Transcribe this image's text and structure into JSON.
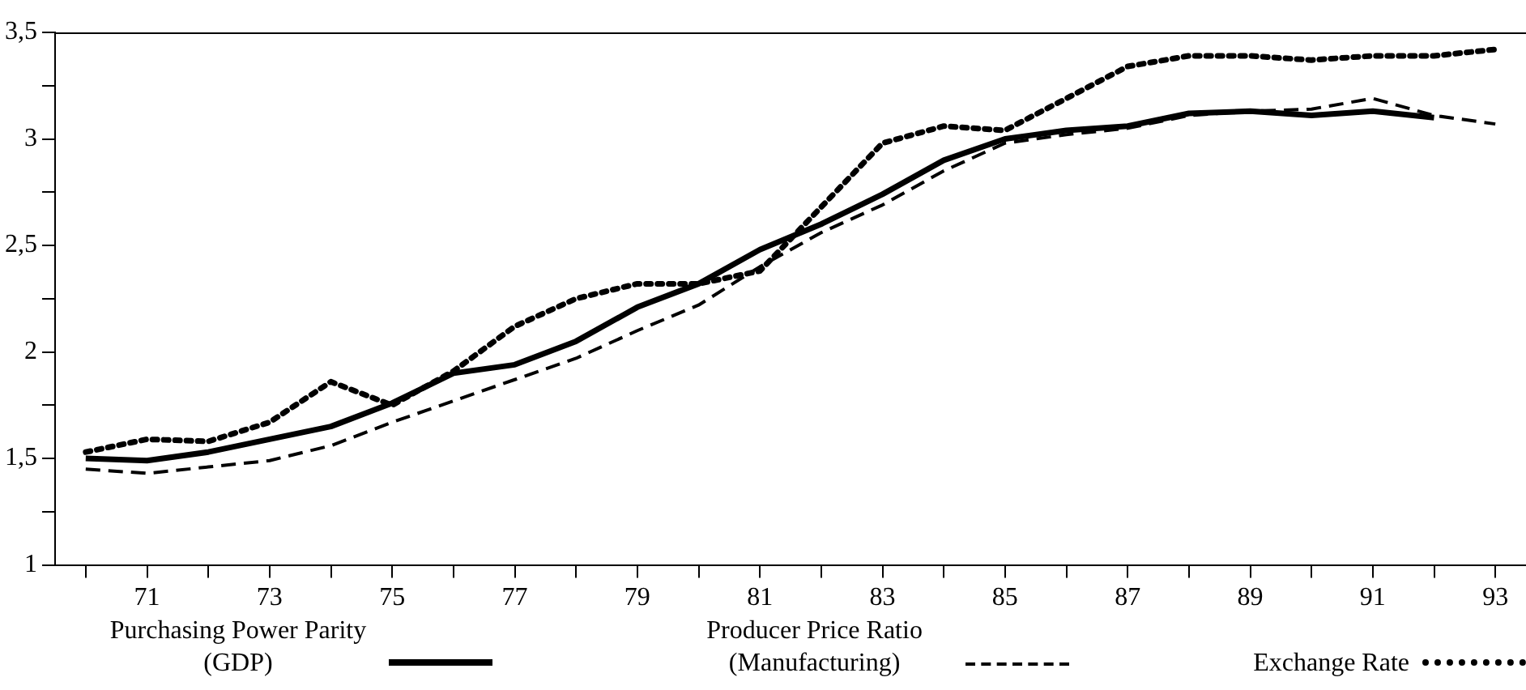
{
  "chart_data": {
    "type": "line",
    "categories": [
      null,
      "71",
      null,
      "73",
      null,
      "75",
      null,
      "77",
      null,
      "79",
      null,
      "81",
      null,
      "83",
      null,
      "85",
      null,
      "87",
      null,
      "89",
      null,
      "91",
      null,
      "93"
    ],
    "ylim": [
      1,
      3.5
    ],
    "yticks": [
      {
        "value": 1,
        "label": "1"
      },
      {
        "value": 1.25,
        "label": null
      },
      {
        "value": 1.5,
        "label": "1,5"
      },
      {
        "value": 1.75,
        "label": null
      },
      {
        "value": 2,
        "label": "2"
      },
      {
        "value": 2.25,
        "label": null
      },
      {
        "value": 2.5,
        "label": "2,5"
      },
      {
        "value": 2.75,
        "label": null
      },
      {
        "value": 3,
        "label": "3"
      },
      {
        "value": 3.25,
        "label": null
      },
      {
        "value": 3.5,
        "label": "3,5"
      }
    ],
    "legend": "bottom",
    "marker": "none",
    "series": [
      {
        "name": "Purchasing Power Parity (GDP)",
        "color": "#000000",
        "line_style": "solid",
        "values": [
          1.5,
          1.49,
          1.53,
          1.59,
          1.65,
          1.76,
          1.9,
          1.94,
          2.05,
          2.21,
          2.32,
          2.48,
          2.6,
          2.74,
          2.9,
          3.0,
          3.04,
          3.06,
          3.12,
          3.13,
          3.11,
          3.13,
          3.1,
          null
        ]
      },
      {
        "name": "Producer Price Ratio (Manufacturing)",
        "color": "#000000",
        "line_style": "dashed",
        "values": [
          1.45,
          1.43,
          1.46,
          1.49,
          1.56,
          1.67,
          1.77,
          1.87,
          1.97,
          2.1,
          2.22,
          2.4,
          2.56,
          2.69,
          2.85,
          2.98,
          3.02,
          3.05,
          3.11,
          3.13,
          3.14,
          3.19,
          3.11,
          3.07
        ]
      },
      {
        "name": "Exchange Rate",
        "color": "#000000",
        "line_style": "dotted",
        "values": [
          1.53,
          1.59,
          1.58,
          1.67,
          1.86,
          1.75,
          1.91,
          2.12,
          2.25,
          2.32,
          2.32,
          2.38,
          2.68,
          2.98,
          3.06,
          3.04,
          3.19,
          3.34,
          3.39,
          3.39,
          3.37,
          3.39,
          3.39,
          3.42
        ]
      }
    ]
  }
}
